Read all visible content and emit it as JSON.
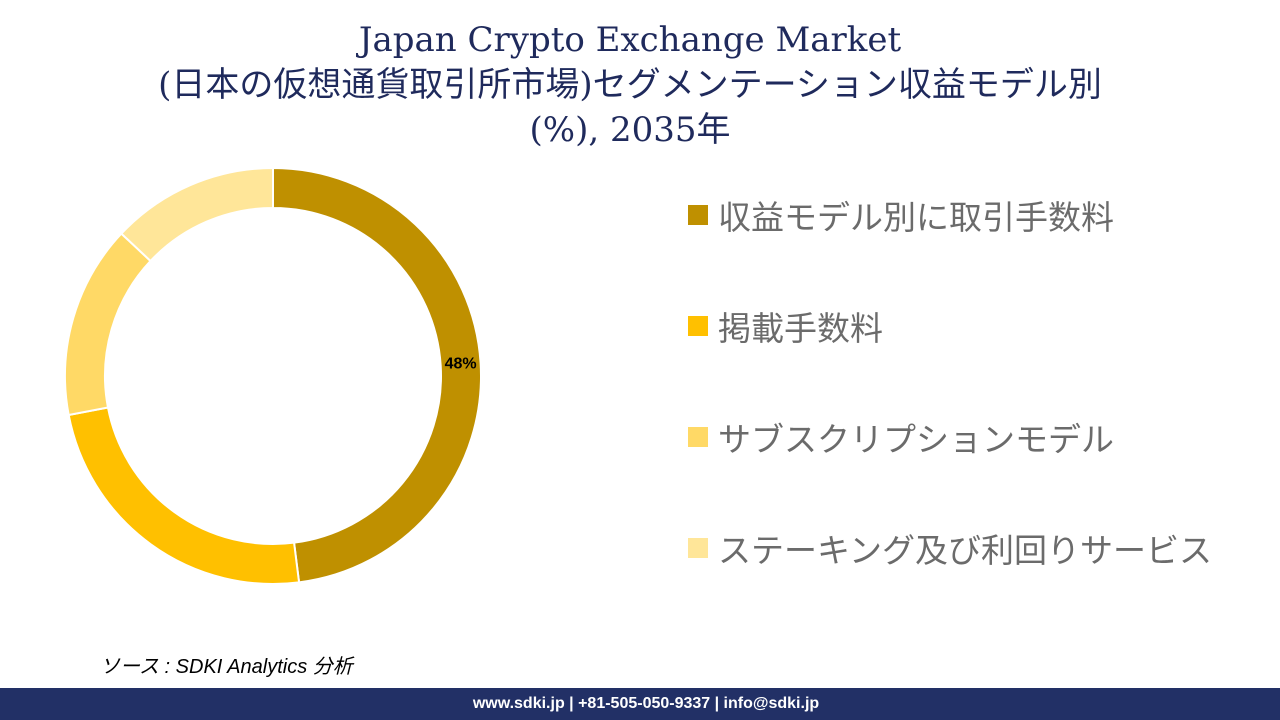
{
  "title": {
    "line1": "Japan Crypto Exchange Market",
    "line2": "(日本の仮想通貨取引所市場)セグメンテーション収益モデル別",
    "line3": "(%), 2035年"
  },
  "chart_data": {
    "type": "donut",
    "title": "Japan Crypto Exchange Market (日本の仮想通貨取引所市場)セグメンテーション収益モデル別 (%), 2035年",
    "categories": [
      "収益モデル別に取引手数料",
      "掲載手数料",
      "サブスクリプションモデル",
      "ステーキング及び利回りサービス"
    ],
    "values": [
      48,
      24,
      15,
      13
    ],
    "data_labels": [
      "48%",
      "",
      "",
      ""
    ],
    "colors": [
      "#bf9000",
      "#ffc000",
      "#ffd966",
      "#ffe699"
    ],
    "legend_position": "right"
  },
  "source": "ソース : SDKI Analytics 分析",
  "footer": "www.sdki.jp | +81-505-050-9337 | info@sdki.jp"
}
